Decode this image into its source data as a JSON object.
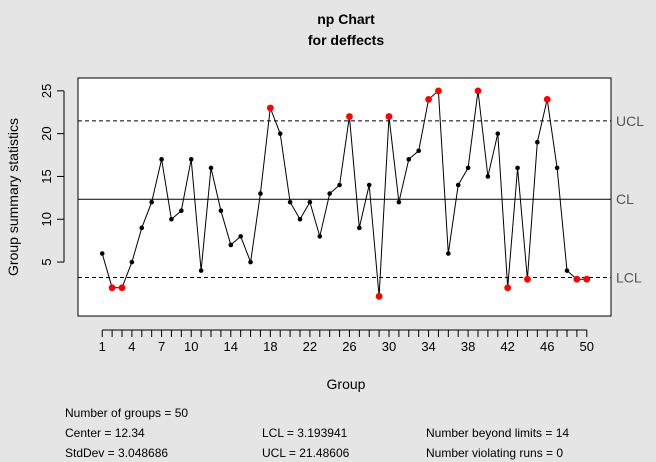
{
  "chart_data": {
    "type": "line",
    "title": "np Chart",
    "subtitle": "for deffects",
    "xlabel": "Group",
    "ylabel": "Group summary statistics",
    "x": [
      1,
      2,
      3,
      4,
      5,
      6,
      7,
      8,
      9,
      10,
      11,
      12,
      13,
      14,
      15,
      16,
      17,
      18,
      19,
      20,
      21,
      22,
      23,
      24,
      25,
      26,
      27,
      28,
      29,
      30,
      31,
      32,
      33,
      34,
      35,
      36,
      37,
      38,
      39,
      40,
      41,
      42,
      43,
      44,
      45,
      46,
      47,
      48,
      49,
      50
    ],
    "values": [
      6,
      2,
      2,
      5,
      9,
      12,
      17,
      10,
      11,
      17,
      4,
      16,
      11,
      7,
      8,
      5,
      13,
      23,
      20,
      12,
      10,
      12,
      8,
      13,
      14,
      22,
      9,
      14,
      1,
      22,
      12,
      17,
      18,
      24,
      25,
      6,
      14,
      16,
      25,
      15,
      20,
      2,
      16,
      3,
      19,
      24,
      16,
      4,
      3,
      3
    ],
    "violations": [
      2,
      3,
      18,
      26,
      29,
      30,
      34,
      35,
      39,
      42,
      44,
      46,
      49,
      50
    ],
    "xlim": [
      -1.45,
      52.45
    ],
    "ylim": [
      -1.3,
      26.5
    ],
    "x_ticks": [
      1,
      4,
      7,
      10,
      14,
      18,
      22,
      26,
      30,
      34,
      38,
      42,
      46,
      50
    ],
    "x_tick_labels": [
      "1",
      "4",
      "7",
      "10",
      "14",
      "18",
      "22",
      "26",
      "30",
      "34",
      "38",
      "42",
      "46",
      "50"
    ],
    "y_ticks": [
      5,
      10,
      15,
      20,
      25
    ],
    "y_tick_labels": [
      "5",
      "10",
      "15",
      "20",
      "25"
    ],
    "center_line": {
      "label": "CL",
      "value": 12.34
    },
    "upper_limit": {
      "label": "UCL",
      "value": 21.48606
    },
    "lower_limit": {
      "label": "LCL",
      "value": 3.193941
    },
    "colors": {
      "point": "#000000",
      "violation": "#ff0000",
      "line": "#000000",
      "background": "#e5e5e5",
      "plot_bg": "#ffffff"
    }
  },
  "stats": {
    "groups": "Number of groups = 50",
    "center": "Center = 12.34",
    "stddev": "StdDev = 3.048686",
    "lcl": "LCL = 3.193941",
    "ucl": "UCL = 21.48606",
    "beyond": "Number beyond limits = 14",
    "runs": "Number violating runs = 0"
  }
}
